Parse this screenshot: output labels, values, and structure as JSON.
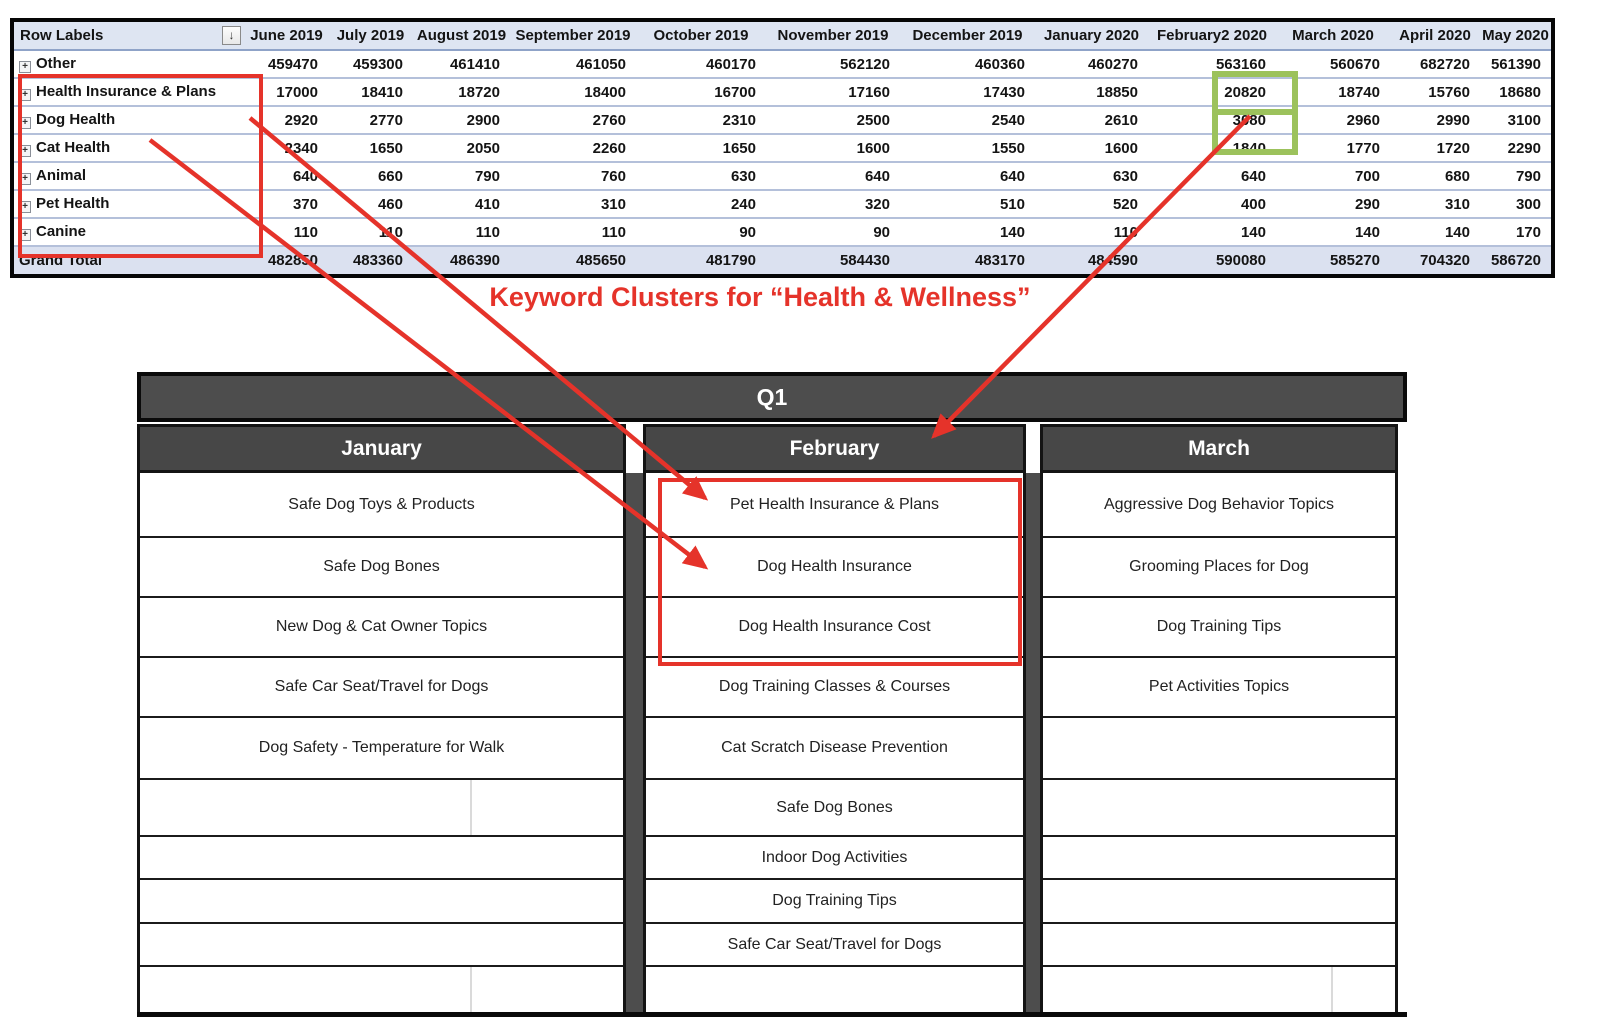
{
  "pivot": {
    "header": [
      "Row Labels",
      "June 2019",
      "July 2019",
      "August 2019",
      "September 2019",
      "October 2019",
      "November 2019",
      "December 2019",
      "January 2020",
      "February2 2020",
      "March 2020",
      "April 2020",
      "May 2020"
    ],
    "rows": [
      {
        "label": "Other",
        "values": [
          459470,
          459300,
          461410,
          461050,
          460170,
          562120,
          460360,
          460270,
          563160,
          560670,
          682720,
          561390
        ]
      },
      {
        "label": "Health Insurance & Plans",
        "values": [
          17000,
          18410,
          18720,
          18400,
          16700,
          17160,
          17430,
          18850,
          20820,
          18740,
          15760,
          18680
        ]
      },
      {
        "label": "Dog Health",
        "values": [
          2920,
          2770,
          2900,
          2760,
          2310,
          2500,
          2540,
          2610,
          3080,
          2960,
          2990,
          3100
        ]
      },
      {
        "label": "Cat Health",
        "values": [
          2340,
          1650,
          2050,
          2260,
          1650,
          1600,
          1550,
          1600,
          1840,
          1770,
          1720,
          2290
        ]
      },
      {
        "label": "Animal",
        "values": [
          640,
          660,
          790,
          760,
          630,
          640,
          640,
          630,
          640,
          700,
          680,
          790
        ]
      },
      {
        "label": "Pet Health",
        "values": [
          370,
          460,
          410,
          310,
          240,
          320,
          510,
          520,
          400,
          290,
          310,
          300
        ]
      },
      {
        "label": "Canine",
        "values": [
          110,
          110,
          110,
          110,
          90,
          90,
          140,
          110,
          140,
          140,
          140,
          170
        ]
      }
    ],
    "grand_total": {
      "label": "Grand Total",
      "values": [
        482850,
        483360,
        486390,
        485650,
        481790,
        584430,
        483170,
        484590,
        590080,
        585270,
        704320,
        586720
      ]
    },
    "sort_icon": "↓",
    "expand_icon": "+"
  },
  "clusters": {
    "quarter_label": "Q1",
    "columns": [
      {
        "month": "January",
        "items": [
          "Safe Dog Toys & Products",
          "Safe Dog Bones",
          "New Dog & Cat Owner Topics",
          "Safe Car Seat/Travel for Dogs",
          "Dog Safety - Temperature for Walk",
          "",
          "",
          "",
          "",
          ""
        ]
      },
      {
        "month": "February",
        "items": [
          "Pet Health Insurance & Plans",
          "Dog Health Insurance",
          "Dog Health Insurance Cost",
          "Dog Training Classes & Courses",
          "Cat Scratch Disease Prevention",
          "Safe Dog Bones",
          "Indoor Dog Activities",
          "Dog Training Tips",
          "Safe Car Seat/Travel for Dogs",
          ""
        ]
      },
      {
        "month": "March",
        "items": [
          "Aggressive Dog Behavior Topics",
          "Grooming Places for Dog",
          "Dog Training Tips",
          "Pet Activities Topics",
          "",
          "",
          "",
          "",
          "",
          ""
        ]
      }
    ]
  },
  "annotations": {
    "keyword_clusters_label": "Keyword Clusters for “Health & Wellness”",
    "red_color": "#E5332A",
    "green_color": "#9CC25C",
    "highlighted_cells": [
      "20820",
      "3080"
    ]
  }
}
